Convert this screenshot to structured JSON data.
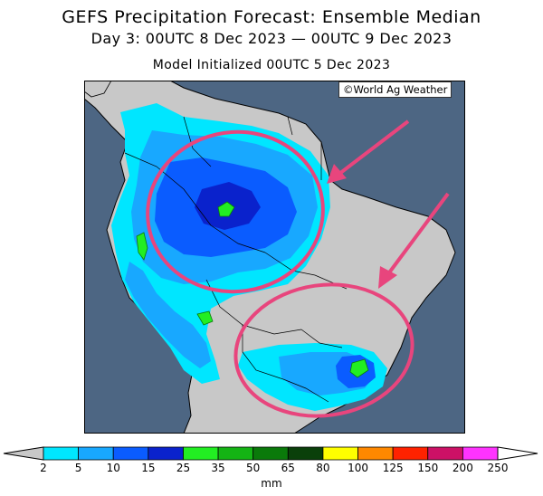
{
  "header": {
    "title": "GEFS Precipitation Forecast: Ensemble Median",
    "period": "Day 3: 00UTC 8 Dec 2023 — 00UTC 9 Dec 2023",
    "init": "Model Initialized 00UTC 5 Dec 2023"
  },
  "map": {
    "credit": "©World Ag Weather",
    "ocean_color": "#4d6683",
    "land_color": "#c8c8c8",
    "highlight_color": "#e8457d",
    "annotations": [
      {
        "type": "ellipse",
        "label": "north-region-circle"
      },
      {
        "type": "ellipse",
        "label": "south-region-circle"
      },
      {
        "type": "arrow",
        "label": "north-arrow"
      },
      {
        "type": "arrow",
        "label": "south-arrow"
      }
    ]
  },
  "legend": {
    "unit": "mm",
    "ticks": [
      "2",
      "5",
      "10",
      "15",
      "25",
      "35",
      "50",
      "65",
      "80",
      "100",
      "125",
      "150",
      "200",
      "250"
    ],
    "colors": [
      "#00e6ff",
      "#18a8ff",
      "#0a5cff",
      "#0a22cc",
      "#22ee22",
      "#14b414",
      "#0a7a0a",
      "#0a400a",
      "#ffff00",
      "#ff8800",
      "#ff2200",
      "#cc1166",
      "#ff33ff",
      "#a050d0"
    ]
  }
}
